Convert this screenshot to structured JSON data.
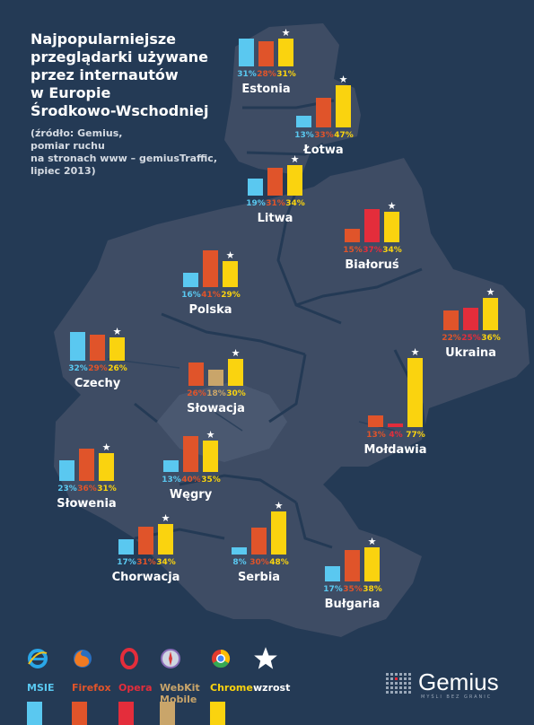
{
  "title_lines": [
    "Najpopularniejsze",
    "przeglądarki używane",
    "przez internautów",
    "w Europie",
    "Środkowo-Wschodniej"
  ],
  "source_lines": [
    "(źródło: Gemius,",
    "pomiar ruchu",
    "na stronach www – gemiusTraffic,",
    "lipiec 2013)"
  ],
  "colors": {
    "background": "#243a55",
    "land": "#3e4c64",
    "msie": "#5ac8f0",
    "firefox": "#e0542a",
    "opera": "#e42d3b",
    "webkit": "#c9a56a",
    "chrome": "#fad30f"
  },
  "legend": {
    "msie": "MSIE",
    "firefox": "Firefox",
    "opera": "Opera",
    "webkit_line1": "WebKit",
    "webkit_line2": "Mobile",
    "chrome": "Chrome",
    "star": "wzrost"
  },
  "logo": {
    "name": "Gemius",
    "tagline": "MYŚLI BEZ GRANIC"
  },
  "chart_data": {
    "type": "bar",
    "title": "Najpopularniejsze przeglądarki używane przez internautów w Europie Środkowo-Wschodniej",
    "unit": "%",
    "series_names": [
      "MSIE",
      "Firefox",
      "Opera",
      "WebKit Mobile",
      "Chrome"
    ],
    "countries": [
      {
        "name": "Estonia",
        "values": [
          {
            "browser": "MSIE",
            "value": 31
          },
          {
            "browser": "Firefox",
            "value": 28
          },
          {
            "browser": "Chrome",
            "value": 31,
            "star": true
          }
        ]
      },
      {
        "name": "Łotwa",
        "values": [
          {
            "browser": "MSIE",
            "value": 13
          },
          {
            "browser": "Firefox",
            "value": 33
          },
          {
            "browser": "Chrome",
            "value": 47,
            "star": true
          }
        ]
      },
      {
        "name": "Litwa",
        "values": [
          {
            "browser": "MSIE",
            "value": 19
          },
          {
            "browser": "Firefox",
            "value": 31
          },
          {
            "browser": "Chrome",
            "value": 34,
            "star": true
          }
        ]
      },
      {
        "name": "Białoruś",
        "values": [
          {
            "browser": "Firefox",
            "value": 15
          },
          {
            "browser": "Opera",
            "value": 37
          },
          {
            "browser": "Chrome",
            "value": 34,
            "star": true
          }
        ]
      },
      {
        "name": "Polska",
        "values": [
          {
            "browser": "MSIE",
            "value": 16
          },
          {
            "browser": "Firefox",
            "value": 41
          },
          {
            "browser": "Chrome",
            "value": 29,
            "star": true
          }
        ]
      },
      {
        "name": "Ukraina",
        "values": [
          {
            "browser": "Firefox",
            "value": 22
          },
          {
            "browser": "Opera",
            "value": 25
          },
          {
            "browser": "Chrome",
            "value": 36,
            "star": true
          }
        ]
      },
      {
        "name": "Czechy",
        "values": [
          {
            "browser": "MSIE",
            "value": 32
          },
          {
            "browser": "Firefox",
            "value": 29
          },
          {
            "browser": "Chrome",
            "value": 26,
            "star": true
          }
        ]
      },
      {
        "name": "Słowacja",
        "values": [
          {
            "browser": "Firefox",
            "value": 26
          },
          {
            "browser": "WebKit Mobile",
            "value": 18
          },
          {
            "browser": "Chrome",
            "value": 30,
            "star": true
          }
        ]
      },
      {
        "name": "Mołdawia",
        "values": [
          {
            "browser": "Firefox",
            "value": 13
          },
          {
            "browser": "Opera",
            "value": 4
          },
          {
            "browser": "Chrome",
            "value": 77,
            "star": true
          }
        ]
      },
      {
        "name": "Słowenia",
        "values": [
          {
            "browser": "MSIE",
            "value": 23
          },
          {
            "browser": "Firefox",
            "value": 36
          },
          {
            "browser": "Chrome",
            "value": 31,
            "star": true
          }
        ]
      },
      {
        "name": "Węgry",
        "values": [
          {
            "browser": "MSIE",
            "value": 13
          },
          {
            "browser": "Firefox",
            "value": 40
          },
          {
            "browser": "Chrome",
            "value": 35,
            "star": true
          }
        ]
      },
      {
        "name": "Chorwacja",
        "values": [
          {
            "browser": "MSIE",
            "value": 17
          },
          {
            "browser": "Firefox",
            "value": 31
          },
          {
            "browser": "Chrome",
            "value": 34,
            "star": true
          }
        ]
      },
      {
        "name": "Serbia",
        "values": [
          {
            "browser": "MSIE",
            "value": 8
          },
          {
            "browser": "Firefox",
            "value": 30
          },
          {
            "browser": "Chrome",
            "value": 48,
            "star": true
          }
        ]
      },
      {
        "name": "Bułgaria",
        "values": [
          {
            "browser": "MSIE",
            "value": 17
          },
          {
            "browser": "Firefox",
            "value": 35
          },
          {
            "browser": "Chrome",
            "value": 38,
            "star": true
          }
        ]
      }
    ]
  }
}
